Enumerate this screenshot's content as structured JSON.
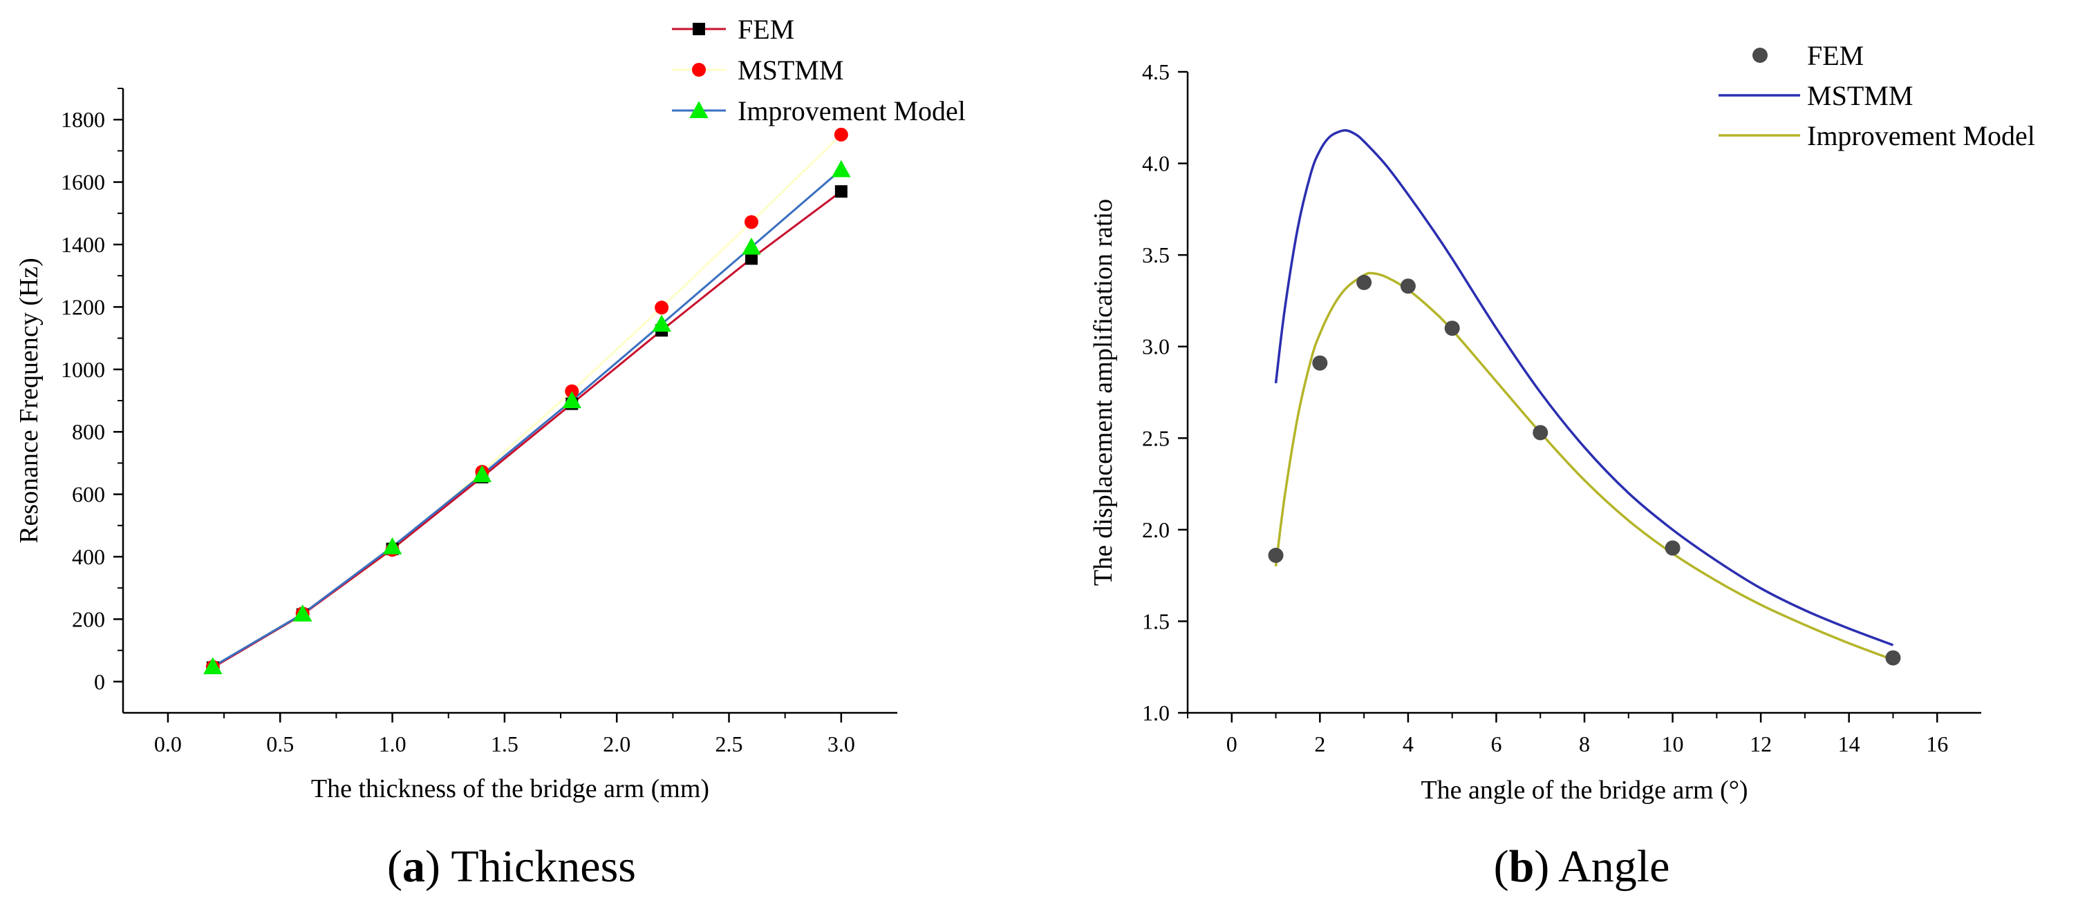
{
  "chart_data": [
    {
      "type": "line",
      "panel_label": "(a)",
      "caption_letter": "a",
      "caption_text": "Thickness",
      "xlabel": "The thickness of the bridge arm (mm)",
      "ylabel": "Resonance Frequency (Hz)",
      "xlim": [
        -0.2,
        3.25
      ],
      "ylim": [
        -100,
        1900
      ],
      "xticks": [
        0.0,
        0.5,
        1.0,
        1.5,
        2.0,
        2.5,
        3.0
      ],
      "xtick_labels": [
        "0.0",
        "0.5",
        "1.0",
        "1.5",
        "2.0",
        "2.5",
        "3.0"
      ],
      "yticks": [
        0,
        200,
        400,
        600,
        800,
        1000,
        1200,
        1400,
        1600,
        1800
      ],
      "ytick_labels": [
        "0",
        "200",
        "400",
        "600",
        "800",
        "1000",
        "1200",
        "1400",
        "1600",
        "1800"
      ],
      "legend_position": "top-right",
      "x": [
        0.2,
        0.6,
        1.0,
        1.4,
        1.8,
        2.2,
        2.6,
        3.0
      ],
      "series": [
        {
          "name": "FEM",
          "line_color": "#c8102e",
          "marker": "square",
          "marker_color": "#000000",
          "values": [
            45,
            215,
            425,
            655,
            890,
            1125,
            1355,
            1570
          ]
        },
        {
          "name": "MSTMM",
          "line_color": "#ffffc8",
          "marker": "circle",
          "marker_color": "#ff0000",
          "values": [
            47,
            218,
            422,
            672,
            930,
            1198,
            1472,
            1752
          ]
        },
        {
          "name": "Improvement Model",
          "line_color": "#3a70c0",
          "marker": "triangle",
          "marker_color": "#00ee00",
          "values": [
            48,
            217,
            432,
            663,
            900,
            1145,
            1392,
            1640
          ]
        }
      ]
    },
    {
      "type": "line",
      "panel_label": "(b)",
      "caption_letter": "b",
      "caption_text": "Angle",
      "xlabel": "The angle of the bridge arm (°)",
      "ylabel": "The displacement amplification ratio",
      "xlim": [
        -1,
        17
      ],
      "ylim": [
        1.0,
        4.5
      ],
      "xticks": [
        0,
        2,
        4,
        6,
        8,
        10,
        12,
        14,
        16
      ],
      "xtick_labels": [
        "0",
        "2",
        "4",
        "6",
        "8",
        "10",
        "12",
        "14",
        "16"
      ],
      "yticks": [
        1.0,
        1.5,
        2.0,
        2.5,
        3.0,
        3.5,
        4.0,
        4.5
      ],
      "ytick_labels": [
        "1.0",
        "1.5",
        "2.0",
        "2.5",
        "3.0",
        "3.5",
        "4.0",
        "4.5"
      ],
      "legend_position": "top-right",
      "series": [
        {
          "name": "FEM",
          "style": "scatter",
          "marker": "circle",
          "color": "#4a4a4a",
          "x": [
            1,
            2,
            3,
            4,
            5,
            7,
            10,
            15
          ],
          "values": [
            1.86,
            2.91,
            3.35,
            3.33,
            3.1,
            2.53,
            1.9,
            1.3
          ]
        },
        {
          "name": "MSTMM",
          "style": "line",
          "color": "#2b2fb0",
          "x": [
            1.0,
            1.2,
            1.5,
            1.8,
            2.0,
            2.2,
            2.4,
            2.6,
            2.8,
            3.0,
            3.5,
            4.0,
            4.5,
            5.0,
            6.0,
            7.0,
            8.0,
            9.0,
            10.0,
            11.0,
            12.0,
            13.0,
            14.0,
            15.0
          ],
          "values": [
            2.8,
            3.2,
            3.65,
            3.95,
            4.07,
            4.14,
            4.17,
            4.18,
            4.16,
            4.12,
            3.99,
            3.83,
            3.66,
            3.48,
            3.1,
            2.75,
            2.45,
            2.2,
            2.0,
            1.83,
            1.68,
            1.56,
            1.46,
            1.37
          ]
        },
        {
          "name": "Improvement Model",
          "style": "line",
          "color": "#b5b52a",
          "x": [
            1.0,
            1.2,
            1.5,
            1.8,
            2.0,
            2.3,
            2.6,
            3.0,
            3.2,
            3.5,
            4.0,
            4.5,
            5.0,
            6.0,
            7.0,
            8.0,
            9.0,
            10.0,
            11.0,
            12.0,
            13.0,
            14.0,
            15.0
          ],
          "values": [
            1.8,
            2.18,
            2.62,
            2.93,
            3.07,
            3.22,
            3.32,
            3.39,
            3.4,
            3.38,
            3.31,
            3.21,
            3.09,
            2.81,
            2.53,
            2.27,
            2.05,
            1.87,
            1.72,
            1.59,
            1.48,
            1.38,
            1.29
          ]
        }
      ]
    }
  ]
}
